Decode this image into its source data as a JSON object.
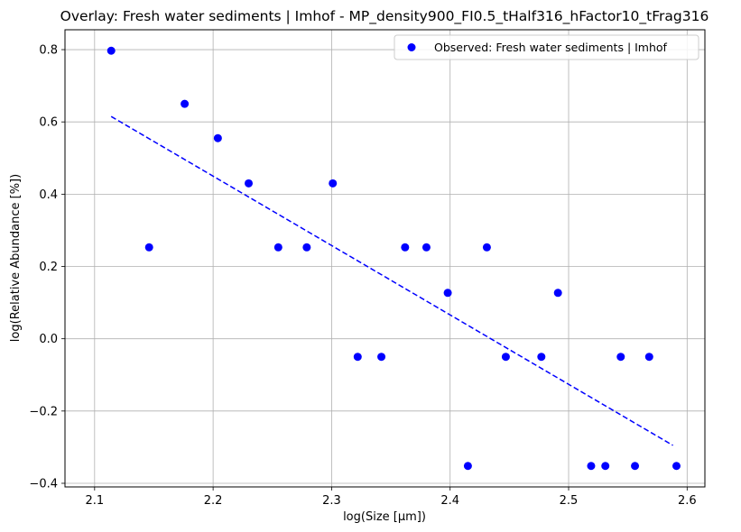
{
  "chart_data": {
    "type": "scatter",
    "title": "Overlay: Fresh water sediments | Imhof - MP_density900_FI0.5_tHalf316_hFactor10_tFrag316",
    "xlabel": "log(Size [μm])",
    "ylabel": "log(Relative Abundance [%])",
    "xlim": [
      2.075,
      2.615
    ],
    "ylim": [
      -0.41,
      0.855
    ],
    "x_ticks": [
      2.1,
      2.2,
      2.3,
      2.4,
      2.5,
      2.6
    ],
    "x_tick_labels": [
      "2.1",
      "2.2",
      "2.3",
      "2.4",
      "2.5",
      "2.6"
    ],
    "y_ticks": [
      -0.4,
      -0.2,
      0.0,
      0.2,
      0.4,
      0.6,
      0.8
    ],
    "y_tick_labels": [
      "−0.4",
      "−0.2",
      "0.0",
      "0.2",
      "0.4",
      "0.6",
      "0.8"
    ],
    "grid": true,
    "legend_placement": "top-right",
    "colors": {
      "series": "#0000ff",
      "grid": "#b0b0b0"
    },
    "series": [
      {
        "name": "Observed: Fresh water sediments | Imhof",
        "kind": "scatter",
        "points": [
          {
            "x": 2.114,
            "y": 0.797
          },
          {
            "x": 2.146,
            "y": 0.253
          },
          {
            "x": 2.176,
            "y": 0.65
          },
          {
            "x": 2.204,
            "y": 0.555
          },
          {
            "x": 2.23,
            "y": 0.43
          },
          {
            "x": 2.255,
            "y": 0.253
          },
          {
            "x": 2.279,
            "y": 0.253
          },
          {
            "x": 2.301,
            "y": 0.43
          },
          {
            "x": 2.322,
            "y": -0.05
          },
          {
            "x": 2.342,
            "y": -0.05
          },
          {
            "x": 2.362,
            "y": 0.253
          },
          {
            "x": 2.38,
            "y": 0.253
          },
          {
            "x": 2.398,
            "y": 0.127
          },
          {
            "x": 2.415,
            "y": -0.352
          },
          {
            "x": 2.431,
            "y": 0.253
          },
          {
            "x": 2.447,
            "y": -0.05
          },
          {
            "x": 2.477,
            "y": -0.05
          },
          {
            "x": 2.491,
            "y": 0.127
          },
          {
            "x": 2.519,
            "y": -0.352
          },
          {
            "x": 2.531,
            "y": -0.352
          },
          {
            "x": 2.544,
            "y": -0.05
          },
          {
            "x": 2.556,
            "y": -0.352
          },
          {
            "x": 2.568,
            "y": -0.05
          },
          {
            "x": 2.591,
            "y": -0.352
          }
        ]
      },
      {
        "name": "",
        "kind": "line",
        "style": "dashed",
        "points": [
          {
            "x": 2.114,
            "y": 0.615
          },
          {
            "x": 2.588,
            "y": -0.295
          }
        ]
      }
    ]
  }
}
